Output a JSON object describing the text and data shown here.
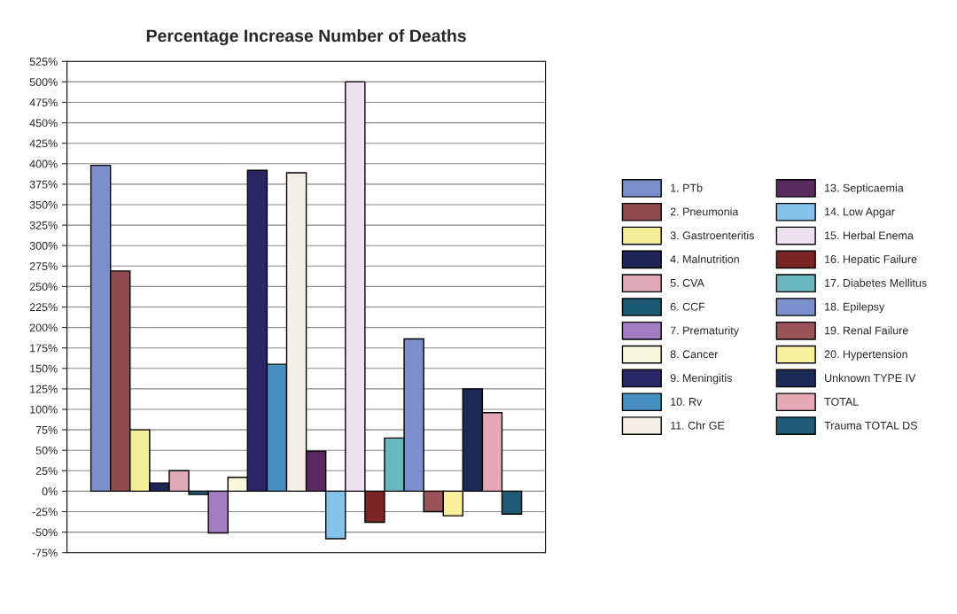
{
  "chart_data": {
    "type": "bar",
    "title": "Percentage Increase Number of Deaths",
    "categories": [
      null
    ],
    "series": [
      {
        "name": "1. PTb",
        "color": "#7b8fcc",
        "values": [
          398
        ]
      },
      {
        "name": "2. Pneumonia",
        "color": "#8e4a4e",
        "values": [
          269
        ]
      },
      {
        "name": "3. Gastroenteritis",
        "color": "#f2ee9a",
        "values": [
          75
        ]
      },
      {
        "name": "4. Malnutrition",
        "color": "#1e2456",
        "values": [
          10
        ]
      },
      {
        "name": "5. CVA",
        "color": "#e2aab8",
        "values": [
          25
        ]
      },
      {
        "name": "6. CCF",
        "color": "#1c5a72",
        "values": [
          -4
        ]
      },
      {
        "name": "7. Prematurity",
        "color": "#a17cc0",
        "values": [
          -51
        ]
      },
      {
        "name": "8. Cancer",
        "color": "#f8f8dc",
        "values": [
          17
        ]
      },
      {
        "name": "9. Meningitis",
        "color": "#2a2766",
        "values": [
          392
        ]
      },
      {
        "name": "10. Rv",
        "color": "#4590c0",
        "values": [
          155
        ]
      },
      {
        "name": "11. Chr GE",
        "color": "#f4efe6",
        "values": [
          389
        ]
      },
      {
        "name": "13. Septicaemia",
        "color": "#5a2a5e",
        "values": [
          49
        ]
      },
      {
        "name": "14. Low Apgar",
        "color": "#86c2ea",
        "values": [
          -58
        ]
      },
      {
        "name": "15. Herbal Enema",
        "color": "#efe0f2",
        "values": [
          500
        ]
      },
      {
        "name": "16. Hepatic Failure",
        "color": "#7a2424",
        "values": [
          -38
        ]
      },
      {
        "name": "17. Diabetes Mellitus",
        "color": "#6ab8bd",
        "values": [
          65
        ]
      },
      {
        "name": "18. Epilepsy",
        "color": "#7b8fcc",
        "values": [
          186
        ]
      },
      {
        "name": "19. Renal Failure",
        "color": "#9a5458",
        "values": [
          -25
        ]
      },
      {
        "name": "20. Hypertension",
        "color": "#f7ef99",
        "values": [
          -30
        ]
      },
      {
        "name": "Unknown TYPE IV",
        "color": "#1c2a5a",
        "values": [
          125
        ]
      },
      {
        "name": "TOTAL",
        "color": "#e4a8b6",
        "values": [
          96
        ]
      },
      {
        "name": "Trauma TOTAL DS",
        "color": "#1e5a76",
        "values": [
          -28
        ]
      }
    ],
    "ylim": [
      -75,
      525
    ],
    "yticks": [
      {
        "value": -75,
        "label": "-75%"
      },
      {
        "value": -50,
        "label": "-50%"
      },
      {
        "value": -25,
        "label": "-25%"
      },
      {
        "value": 0,
        "label": "0%"
      },
      {
        "value": 25,
        "label": "25%"
      },
      {
        "value": 50,
        "label": "50%"
      },
      {
        "value": 75,
        "label": "75%"
      },
      {
        "value": 100,
        "label": "100%"
      },
      {
        "value": 125,
        "label": "125%"
      },
      {
        "value": 150,
        "label": "150%"
      },
      {
        "value": 175,
        "label": "175%"
      },
      {
        "value": 200,
        "label": "200%"
      },
      {
        "value": 225,
        "label": "225%"
      },
      {
        "value": 250,
        "label": "250%"
      },
      {
        "value": 275,
        "label": "275%"
      },
      {
        "value": 300,
        "label": "300%"
      },
      {
        "value": 325,
        "label": "325%"
      },
      {
        "value": 350,
        "label": "350%"
      },
      {
        "value": 375,
        "label": "375%"
      },
      {
        "value": 400,
        "label": "400%"
      },
      {
        "value": 425,
        "label": "425%"
      },
      {
        "value": 450,
        "label": "450%"
      },
      {
        "value": 475,
        "label": "475%"
      },
      {
        "value": 500,
        "label": "500%"
      },
      {
        "value": 525,
        "label": "525%"
      }
    ],
    "grid": "y",
    "legend": "right",
    "tick_labels": "y"
  }
}
